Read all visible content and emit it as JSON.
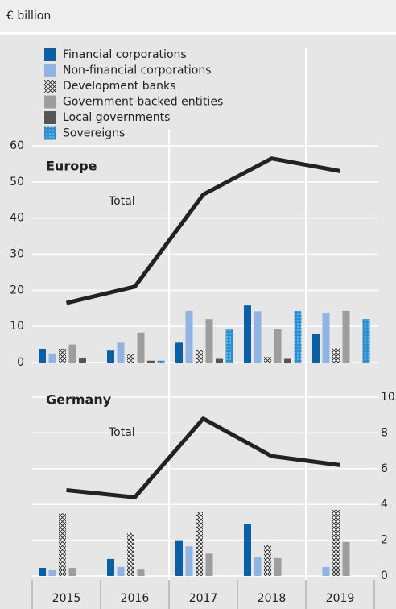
{
  "chart_data": {
    "type": "bar",
    "ylabel": "€ billion",
    "categories": [
      "2015",
      "2016",
      "2017",
      "2018",
      "2019"
    ],
    "legend": [
      {
        "name": "Financial corporations",
        "color": "#0b5fa5",
        "pattern": "solid"
      },
      {
        "name": "Non-financial corporations",
        "color": "#8fb4e3",
        "pattern": "solid"
      },
      {
        "name": "Development banks",
        "color": "#333333",
        "pattern": "crosshatch"
      },
      {
        "name": "Government-backed entities",
        "color": "#9d9d9d",
        "pattern": "solid"
      },
      {
        "name": "Local governments",
        "color": "#555555",
        "pattern": "solid"
      },
      {
        "name": "Sovereigns",
        "color": "#2b8fd0",
        "pattern": "dots"
      }
    ],
    "panels": [
      {
        "title": "Europe",
        "total_label": "Total",
        "axis": "left",
        "ylim": [
          0,
          60
        ],
        "yticks": [
          0,
          10,
          20,
          30,
          40,
          50,
          60
        ],
        "total": [
          16.5,
          21,
          46.5,
          56.5,
          53
        ],
        "series": [
          {
            "values": [
              3.8,
              3.3,
              5.5,
              15.8,
              8
            ]
          },
          {
            "values": [
              2.5,
              5.5,
              14.3,
              14.2,
              13.8
            ]
          },
          {
            "values": [
              3.8,
              2.2,
              3.5,
              1.5,
              4
            ]
          },
          {
            "values": [
              5,
              8.3,
              12,
              9.3,
              14.3
            ]
          },
          {
            "values": [
              1.2,
              0.5,
              1,
              1,
              0
            ]
          },
          {
            "values": [
              0,
              0.5,
              9.3,
              14.3,
              12
            ]
          }
        ]
      },
      {
        "title": "Germany",
        "total_label": "Total",
        "axis": "y2",
        "ylim": [
          0,
          10
        ],
        "yticks": [
          0,
          2,
          4,
          6,
          8,
          10
        ],
        "total": [
          4.8,
          4.4,
          8.8,
          6.7,
          6.2
        ],
        "series": [
          {
            "values": [
              0.45,
              0.95,
              2,
              2.9,
              0
            ]
          },
          {
            "values": [
              0.35,
              0.5,
              1.65,
              1.05,
              0.5
            ]
          },
          {
            "values": [
              3.5,
              2.4,
              3.6,
              1.75,
              3.7
            ]
          },
          {
            "values": [
              0.45,
              0.4,
              1.25,
              1,
              1.9
            ]
          },
          {
            "values": [
              0,
              0,
              0,
              0,
              0
            ]
          },
          {
            "values": [
              0,
              0,
              0,
              0,
              0
            ]
          }
        ]
      }
    ]
  }
}
